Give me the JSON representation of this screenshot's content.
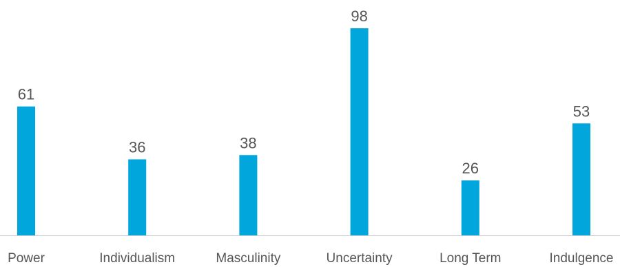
{
  "chart_data": {
    "type": "bar",
    "categories": [
      "Power",
      "Individualism",
      "Masculinity",
      "Uncertainty",
      "Long Term",
      "Indulgence"
    ],
    "values": [
      61,
      36,
      38,
      98,
      26,
      53
    ],
    "title": "",
    "xlabel": "",
    "ylabel": "",
    "ylim": [
      0,
      100
    ],
    "grid": false,
    "legend": "none",
    "colors": {
      "bar": "#00a6dc",
      "text": "#555555",
      "baseline": "#cccccc"
    }
  }
}
